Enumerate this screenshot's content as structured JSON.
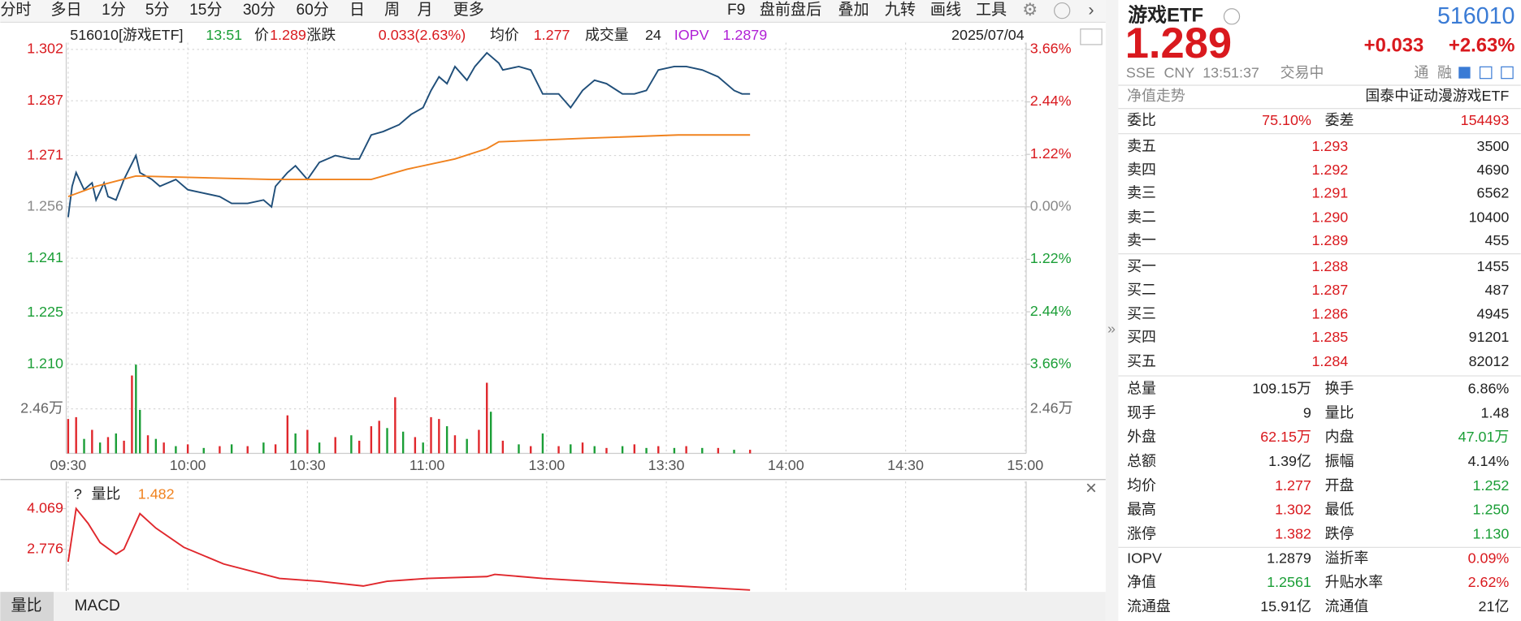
{
  "toolbar": {
    "periods": [
      "分时",
      "多日",
      "1分",
      "5分",
      "15分",
      "30分",
      "60分",
      "日",
      "周",
      "月",
      "更多"
    ],
    "tools": [
      "F9",
      "盘前盘后",
      "叠加",
      "九转",
      "画线",
      "工具"
    ]
  },
  "chart_data": [
    {
      "type": "line",
      "header": {
        "code_name": "516010[游戏ETF]",
        "time": "13:51",
        "price_label": "价",
        "price": "1.289",
        "change_label": "涨跌",
        "change": "0.033(2.63%)",
        "avg_label": "均价",
        "avg": "1.277",
        "volume_label": "成交量",
        "volume": "24",
        "iopv_label": "IOPV",
        "iopv": "1.2879",
        "date": "2025/07/04"
      },
      "xlim": [
        0,
        240
      ],
      "xticks": [
        {
          "value": 0,
          "label": "09:30"
        },
        {
          "value": 30,
          "label": "10:00"
        },
        {
          "value": 60,
          "label": "10:30"
        },
        {
          "value": 90,
          "label": "11:00"
        },
        {
          "value": 120,
          "label": "13:00"
        },
        {
          "value": 150,
          "label": "13:30"
        },
        {
          "value": 180,
          "label": "14:00"
        },
        {
          "value": 210,
          "label": "14:30"
        },
        {
          "value": 240,
          "label": "15:00"
        }
      ],
      "ylim": [
        1.21,
        1.302
      ],
      "yticks": [
        1.302,
        1.287,
        1.271,
        1.256,
        1.241,
        1.225,
        {
          "value": 1.21,
          "label": "1.210"
        }
      ],
      "y2lim": [
        -3.66,
        3.66
      ],
      "y2ticks": [
        {
          "value": 3.66,
          "label": "3.66%"
        },
        {
          "value": 2.44,
          "label": "2.44%"
        },
        {
          "value": 1.22,
          "label": "1.22%"
        },
        {
          "value": 0,
          "label": "0.00%"
        },
        {
          "value": -1.22,
          "label": "1.22%"
        },
        {
          "value": -2.44,
          "label": "2.44%"
        },
        {
          "value": -3.66,
          "label": "3.66%"
        }
      ],
      "grid": true,
      "series": [
        {
          "color": "#1f4e79",
          "x": [
            0,
            1,
            2,
            4,
            6,
            7,
            9,
            10,
            12,
            14,
            17,
            18,
            21,
            23,
            27,
            30,
            34,
            38,
            41,
            45,
            49,
            51,
            52,
            55,
            57,
            60,
            63,
            67,
            71,
            73,
            76,
            79,
            83,
            86,
            89,
            91,
            93,
            95,
            97,
            100,
            102,
            105,
            108,
            109,
            113,
            116,
            119,
            123,
            126,
            129,
            132,
            135,
            139,
            142,
            145,
            148,
            152,
            155,
            159,
            163,
            167,
            169,
            171
          ],
          "values": [
            1.253,
            1.262,
            1.266,
            1.261,
            1.263,
            1.258,
            1.263,
            1.259,
            1.258,
            1.264,
            1.271,
            1.266,
            1.264,
            1.262,
            1.264,
            1.261,
            1.26,
            1.259,
            1.257,
            1.257,
            1.258,
            1.256,
            1.262,
            1.266,
            1.268,
            1.264,
            1.269,
            1.271,
            1.27,
            1.27,
            1.277,
            1.278,
            1.28,
            1.283,
            1.285,
            1.29,
            1.294,
            1.292,
            1.297,
            1.293,
            1.297,
            1.301,
            1.298,
            1.296,
            1.297,
            1.296,
            1.289,
            1.289,
            1.285,
            1.29,
            1.293,
            1.292,
            1.289,
            1.289,
            1.29,
            1.296,
            1.297,
            1.297,
            1.296,
            1.294,
            1.29,
            1.289,
            1.289
          ]
        },
        {
          "color": "#f0821e",
          "x": [
            0,
            7,
            17,
            51,
            76,
            85,
            97,
            105,
            108,
            129,
            153,
            171
          ],
          "values": [
            1.259,
            1.262,
            1.265,
            1.264,
            1.264,
            1.267,
            1.27,
            1.273,
            1.275,
            1.276,
            1.277,
            1.277
          ]
        }
      ]
    },
    {
      "type": "bar",
      "x": [
        0,
        2,
        4,
        6,
        8,
        10,
        12,
        14,
        16,
        17,
        18,
        20,
        22,
        24,
        27,
        30,
        34,
        38,
        41,
        45,
        49,
        52,
        55,
        57,
        60,
        63,
        67,
        71,
        73,
        76,
        78,
        80,
        82,
        84,
        87,
        89,
        91,
        93,
        95,
        97,
        100,
        103,
        105,
        106,
        109,
        113,
        116,
        119,
        123,
        126,
        129,
        132,
        135,
        139,
        142,
        145,
        148,
        152,
        155,
        159,
        163,
        167,
        171
      ],
      "values": [
        1.9,
        2.0,
        0.8,
        1.3,
        0.6,
        0.9,
        1.1,
        0.7,
        4.3,
        4.9,
        2.4,
        1.0,
        0.8,
        0.6,
        0.4,
        0.5,
        0.3,
        0.4,
        0.5,
        0.4,
        0.6,
        0.5,
        2.1,
        1.1,
        1.3,
        0.6,
        0.9,
        1.0,
        0.7,
        1.5,
        1.8,
        1.4,
        3.1,
        1.2,
        0.9,
        0.6,
        2.0,
        1.9,
        1.5,
        1.0,
        0.8,
        1.3,
        3.9,
        2.3,
        0.7,
        0.5,
        0.4,
        1.1,
        0.4,
        0.5,
        0.6,
        0.4,
        0.3,
        0.4,
        0.5,
        0.3,
        0.4,
        0.3,
        0.4,
        0.3,
        0.3,
        0.2,
        0.2
      ],
      "colors": [
        "#e0272c",
        "#e0272c",
        "#1a9e36",
        "#e0272c",
        "#1a9e36",
        "#e0272c",
        "#1a9e36",
        "#e0272c",
        "#e0272c",
        "#1a9e36",
        "#1a9e36",
        "#e0272c",
        "#1a9e36",
        "#e0272c",
        "#1a9e36",
        "#e0272c",
        "#1a9e36",
        "#e0272c",
        "#1a9e36",
        "#e0272c",
        "#1a9e36",
        "#e0272c",
        "#e0272c",
        "#1a9e36",
        "#e0272c",
        "#1a9e36",
        "#e0272c",
        "#1a9e36",
        "#e0272c",
        "#e0272c",
        "#e0272c",
        "#1a9e36",
        "#e0272c",
        "#1a9e36",
        "#e0272c",
        "#1a9e36",
        "#e0272c",
        "#e0272c",
        "#1a9e36",
        "#e0272c",
        "#1a9e36",
        "#e0272c",
        "#e0272c",
        "#1a9e36",
        "#e0272c",
        "#1a9e36",
        "#e0272c",
        "#1a9e36",
        "#e0272c",
        "#1a9e36",
        "#e0272c",
        "#1a9e36",
        "#e0272c",
        "#1a9e36",
        "#e0272c",
        "#1a9e36",
        "#e0272c",
        "#1a9e36",
        "#e0272c",
        "#1a9e36",
        "#e0272c",
        "#1a9e36",
        "#e0272c"
      ],
      "ylim": [
        0,
        5
      ],
      "yticks": [
        {
          "value": 2.46,
          "label": "2.46万"
        }
      ]
    },
    {
      "type": "line",
      "help": "?",
      "label": "量比",
      "value_text": "1.482",
      "color": "#e0272c",
      "x": [
        0,
        2,
        5,
        8,
        12,
        14,
        18,
        22,
        29,
        39,
        53,
        63,
        74,
        80,
        90,
        105,
        107,
        119,
        139,
        153,
        171
      ],
      "values": [
        2.38,
        4.07,
        3.6,
        2.99,
        2.62,
        2.78,
        3.91,
        3.45,
        2.84,
        2.31,
        1.85,
        1.76,
        1.61,
        1.76,
        1.85,
        1.91,
        1.98,
        1.85,
        1.7,
        1.61,
        1.482
      ],
      "ylim": [
        1.452,
        4.469
      ],
      "yticks": [
        4.069,
        2.776
      ]
    }
  ],
  "tabs": [
    "量比",
    "MACD"
  ],
  "quote": {
    "name": "游戏ETF",
    "code": "516010",
    "price": "1.289",
    "change": "+0.033",
    "change_pct": "+2.63%",
    "exchange": "SSE",
    "currency": "CNY",
    "time": "13:51:37",
    "status": "交易中",
    "tags": [
      "通",
      "融"
    ],
    "nav_label": "净值走势",
    "fund_name": "国泰中证动漫游戏ETF",
    "ratio": [
      "委比",
      "75.10%",
      "委差",
      "154493"
    ],
    "asks": [
      [
        "卖五",
        "1.293",
        "3500"
      ],
      [
        "卖四",
        "1.292",
        "4690"
      ],
      [
        "卖三",
        "1.291",
        "6562"
      ],
      [
        "卖二",
        "1.290",
        "10400"
      ],
      [
        "卖一",
        "1.289",
        "455"
      ]
    ],
    "bids": [
      [
        "买一",
        "1.288",
        "1455"
      ],
      [
        "买二",
        "1.287",
        "487"
      ],
      [
        "买三",
        "1.286",
        "4945"
      ],
      [
        "买四",
        "1.285",
        "91201"
      ],
      [
        "买五",
        "1.284",
        "82012"
      ]
    ],
    "stats": [
      [
        "总量",
        "109.15万",
        "换手",
        "6.86%"
      ],
      [
        "现手",
        "9",
        "量比",
        "1.48"
      ],
      [
        "外盘",
        "62.15万",
        "内盘",
        "47.01万"
      ],
      [
        "总额",
        "1.39亿",
        "振幅",
        "4.14%"
      ],
      [
        "均价",
        "1.277",
        "开盘",
        "1.252"
      ],
      [
        "最高",
        "1.302",
        "最低",
        "1.250"
      ],
      [
        "涨停",
        "1.382",
        "跌停",
        "1.130"
      ],
      [
        "IOPV",
        "1.2879",
        "溢折率",
        "0.09%"
      ],
      [
        "净值",
        "1.2561",
        "升贴水率",
        "2.62%"
      ],
      [
        "流通盘",
        "15.91亿",
        "流通值",
        "21亿"
      ]
    ]
  }
}
